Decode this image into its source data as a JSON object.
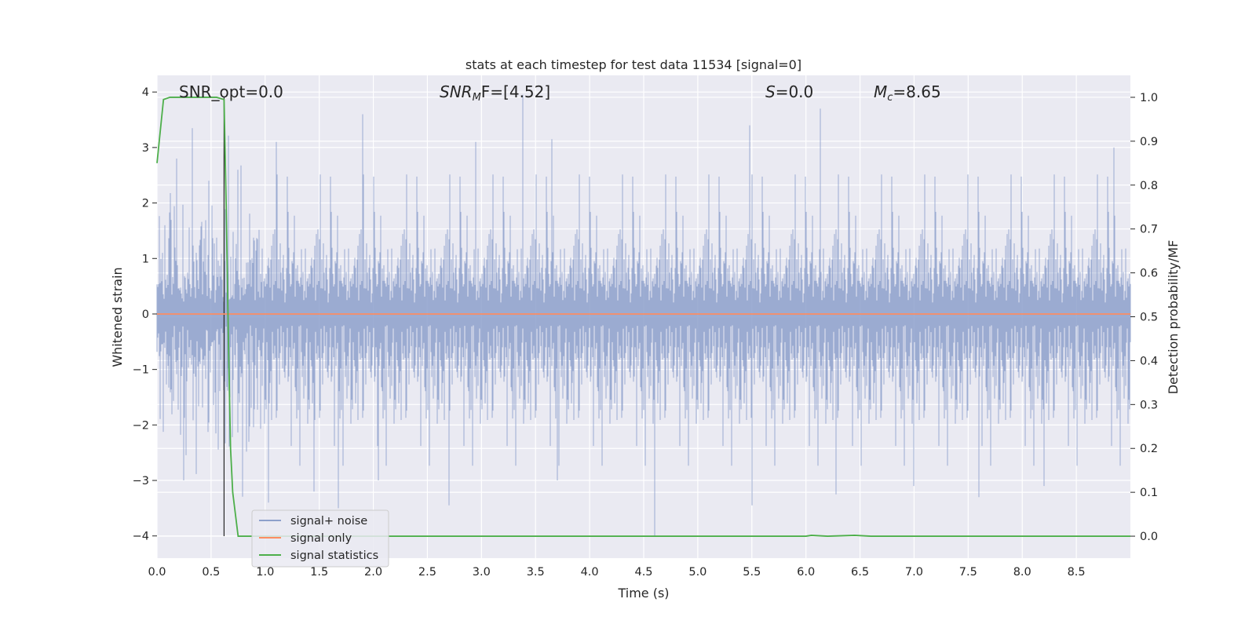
{
  "chart_data": {
    "type": "line",
    "title": "stats at each timestep for test data 11534 [signal=0]",
    "xlabel": "Time (s)",
    "ylabel": "Whitened strain",
    "ylabel_right": "Detection probability/MF",
    "xlim": [
      0.0,
      9.0
    ],
    "ylim": [
      -4.4,
      4.3
    ],
    "ylim_right": [
      -0.05,
      1.05
    ],
    "x_ticks": [
      "0.0",
      "0.5",
      "1.0",
      "1.5",
      "2.0",
      "2.5",
      "3.0",
      "3.5",
      "4.0",
      "4.5",
      "5.0",
      "5.5",
      "6.0",
      "6.5",
      "7.0",
      "7.5",
      "8.0",
      "8.5"
    ],
    "y_ticks": [
      "4",
      "3",
      "2",
      "1",
      "0",
      "−1",
      "−2",
      "−3",
      "−4"
    ],
    "y_ticks_right": [
      "1.0",
      "0.9",
      "0.8",
      "0.7",
      "0.6",
      "0.5",
      "0.4",
      "0.3",
      "0.2",
      "0.1",
      "0.0"
    ],
    "grid": true,
    "legend_position": "lower-left",
    "annotations": {
      "snr_opt": "SNR_opt=0.0",
      "snr_mf_symbol": "SNR",
      "snr_mf_sub": "M",
      "snr_mf_rest": "F=[4.52]",
      "s_symbol": "S",
      "s_rest": "=0.0",
      "mc_symbol": "M",
      "mc_sub": "c",
      "mc_rest": "=8.65"
    },
    "vertical_marker_x": 0.62,
    "series": [
      {
        "name": "signal+ noise",
        "axis": "left",
        "color": "#8da0cb",
        "note_shape": "dense whitened noise",
        "positive_peaks": [
          [
            0.18,
            2.8
          ],
          [
            0.33,
            3.35
          ],
          [
            0.48,
            2.4
          ],
          [
            0.75,
            2.6
          ],
          [
            1.1,
            3.1
          ],
          [
            1.9,
            3.6
          ],
          [
            2.95,
            3.1
          ],
          [
            3.38,
            3.95
          ],
          [
            3.65,
            3.15
          ],
          [
            5.48,
            3.4
          ],
          [
            6.13,
            3.7
          ],
          [
            8.85,
            3.0
          ]
        ],
        "negative_peaks": [
          [
            0.25,
            -3.0
          ],
          [
            1.03,
            -3.4
          ],
          [
            1.45,
            -3.2
          ],
          [
            1.68,
            -3.5
          ],
          [
            2.05,
            -3.0
          ],
          [
            2.7,
            -3.45
          ],
          [
            3.7,
            -3.0
          ],
          [
            4.6,
            -4.0
          ],
          [
            5.5,
            -3.45
          ],
          [
            6.28,
            -3.25
          ],
          [
            7.0,
            -3.1
          ],
          [
            7.6,
            -3.3
          ],
          [
            8.2,
            -3.1
          ]
        ]
      },
      {
        "name": "signal only",
        "axis": "left",
        "color": "#fc8d62",
        "x": [
          0.0,
          9.0
        ],
        "y": [
          0.0,
          0.0
        ]
      },
      {
        "name": "signal statistics",
        "axis": "right",
        "color": "#4daf4a",
        "x": [
          0.0,
          0.06,
          0.12,
          0.25,
          0.4,
          0.55,
          0.62,
          0.64,
          0.66,
          0.68,
          0.7,
          0.75,
          0.9,
          1.5,
          3.0,
          4.5,
          6.0,
          6.05,
          6.2,
          6.45,
          6.6,
          7.5,
          9.0
        ],
        "y": [
          0.85,
          0.995,
          1.0,
          1.0,
          1.0,
          1.0,
          0.995,
          0.75,
          0.45,
          0.2,
          0.1,
          0.0,
          0.0,
          0.0,
          0.0,
          0.0,
          0.0,
          0.002,
          0.0,
          0.002,
          0.0,
          0.0,
          0.0
        ]
      }
    ]
  }
}
